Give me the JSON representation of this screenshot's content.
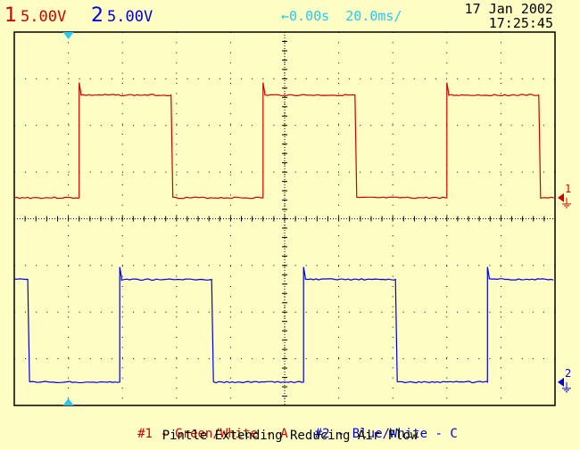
{
  "channels": {
    "ch1": {
      "number": "1",
      "scale": "5.00V",
      "color": "#d00000"
    },
    "ch2": {
      "number": "2",
      "scale": "5.00V",
      "color": "#0000e0"
    }
  },
  "trigger": {
    "delay": "0.00s",
    "timebase": "20.0ms/"
  },
  "timestamp": {
    "date": "17 Jan 2002",
    "time": "17:25:45"
  },
  "markers": {
    "ch1_ground": "1",
    "ch2_ground": "2"
  },
  "footer": {
    "ch1_label": "#1 - Green/White - A",
    "ch2_label": "#2 - Blue/White - C",
    "caption": "Pintle Extending Reducing Air Flow"
  },
  "colors": {
    "background": "#fdfdc4",
    "grid": "#000000",
    "cyan": "#28c8f0"
  },
  "chart_data": {
    "type": "line",
    "xlabel": "",
    "ylabel": "",
    "x_divisions": 10,
    "y_divisions": 8,
    "series": [
      {
        "name": "#1 - Green/White - A",
        "unit": "V",
        "low": 0,
        "high": 11,
        "period_div": 3.4,
        "duty_high": 0.5,
        "first_rise_div": 1.2
      },
      {
        "name": "#2 - Blue/White - C",
        "unit": "V",
        "low": 0,
        "high": 11,
        "period_div": 3.4,
        "duty_high": 0.5,
        "first_rise_div": 2.1
      }
    ]
  }
}
